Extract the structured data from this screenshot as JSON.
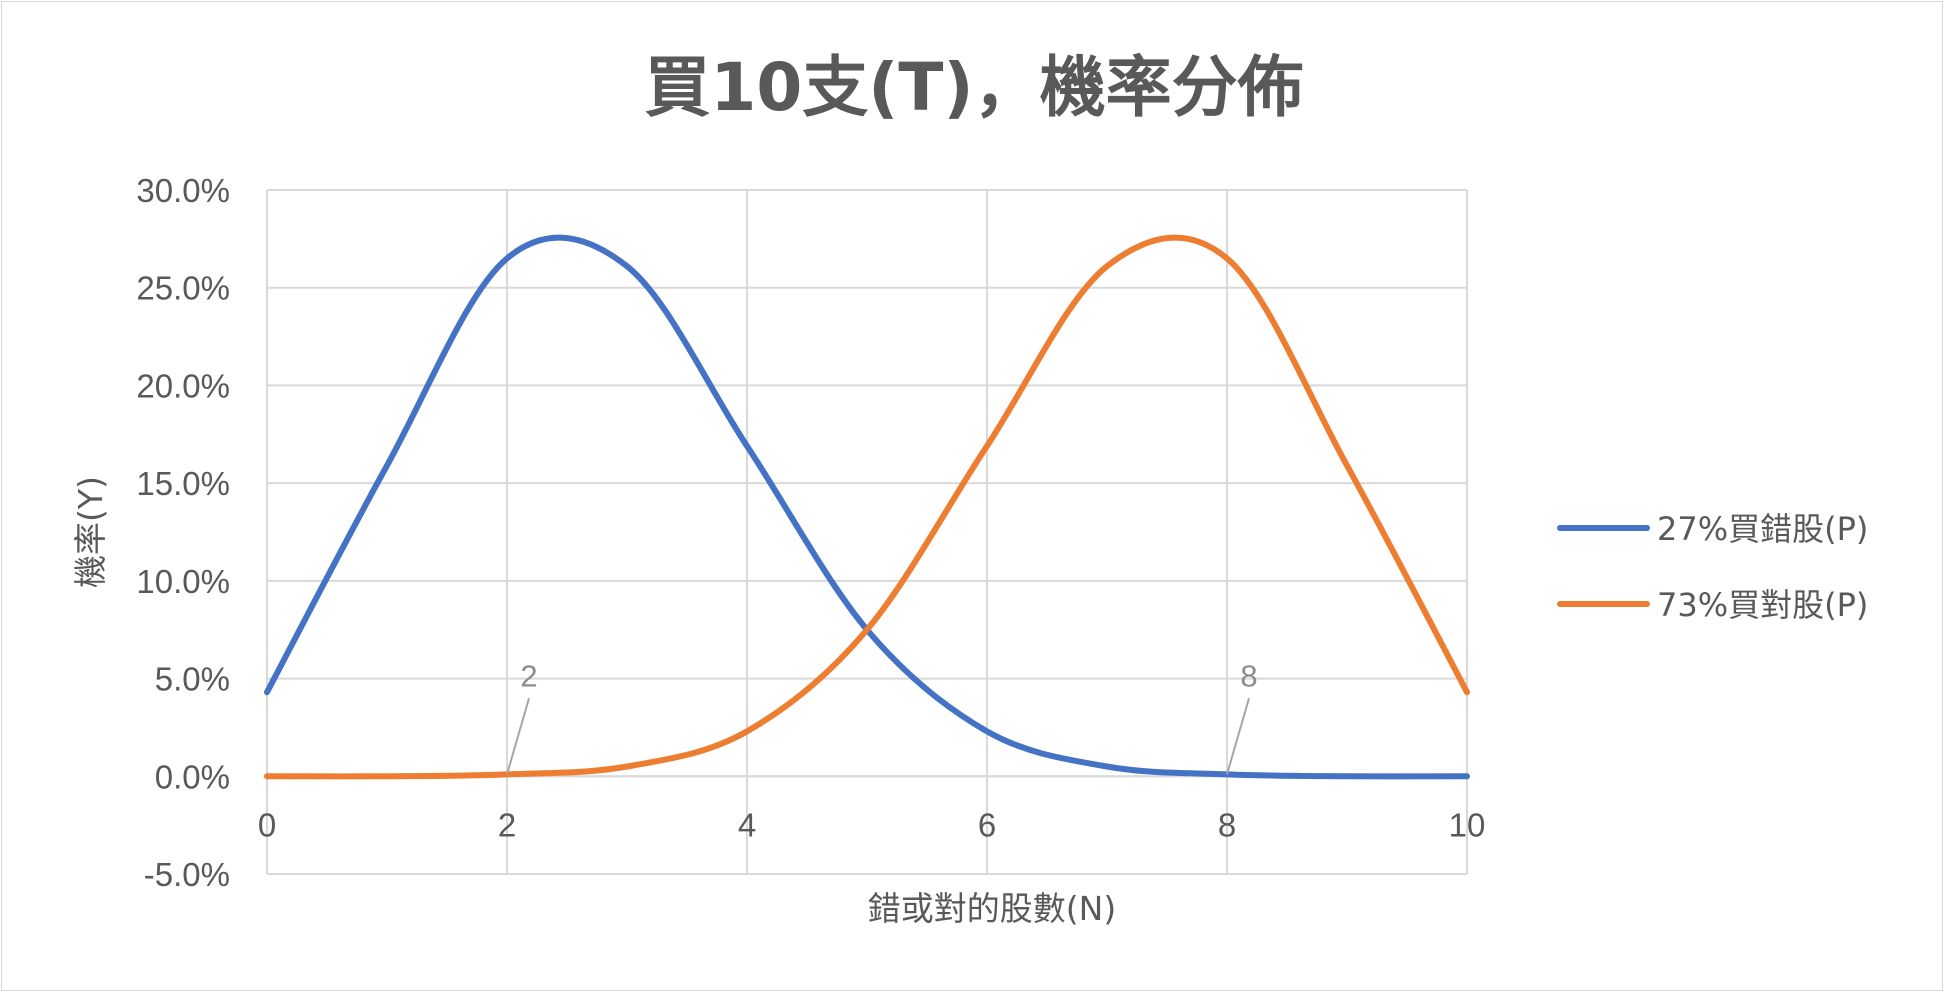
{
  "chart_data": {
    "type": "line",
    "title": "買10支(T)，機率分佈",
    "xlabel": "錯或對的股數(N)",
    "ylabel": "機率(Y)",
    "xlim": [
      0,
      10
    ],
    "ylim": [
      -0.05,
      0.3
    ],
    "x_ticks": [
      0,
      2,
      4,
      6,
      8,
      10
    ],
    "y_ticks": [
      -0.05,
      0.0,
      0.05,
      0.1,
      0.15,
      0.2,
      0.25,
      0.3
    ],
    "x_tick_labels": [
      "0",
      "2",
      "4",
      "6",
      "8",
      "10"
    ],
    "y_tick_labels": [
      "-5.0%",
      "0.0%",
      "5.0%",
      "10.0%",
      "15.0%",
      "20.0%",
      "25.0%",
      "30.0%"
    ],
    "grid": true,
    "legend_position": "right",
    "smooth": true,
    "x": [
      0,
      1,
      2,
      3,
      4,
      5,
      6,
      7,
      8,
      9,
      10
    ],
    "series": [
      {
        "name": "27%買錯股(P)",
        "color": "#4472c4",
        "values": [
          0.043,
          0.159,
          0.265,
          0.261,
          0.169,
          0.075,
          0.023,
          0.005,
          0.001,
          0.0,
          0.0
        ]
      },
      {
        "name": "73%買對股(P)",
        "color": "#ed7d31",
        "values": [
          0.0,
          0.0,
          0.001,
          0.005,
          0.023,
          0.075,
          0.169,
          0.261,
          0.265,
          0.159,
          0.043
        ]
      }
    ],
    "annotations": [
      {
        "text": "2",
        "x": 2,
        "y": 0.001
      },
      {
        "text": "8",
        "x": 8,
        "y": 0.001
      }
    ]
  }
}
